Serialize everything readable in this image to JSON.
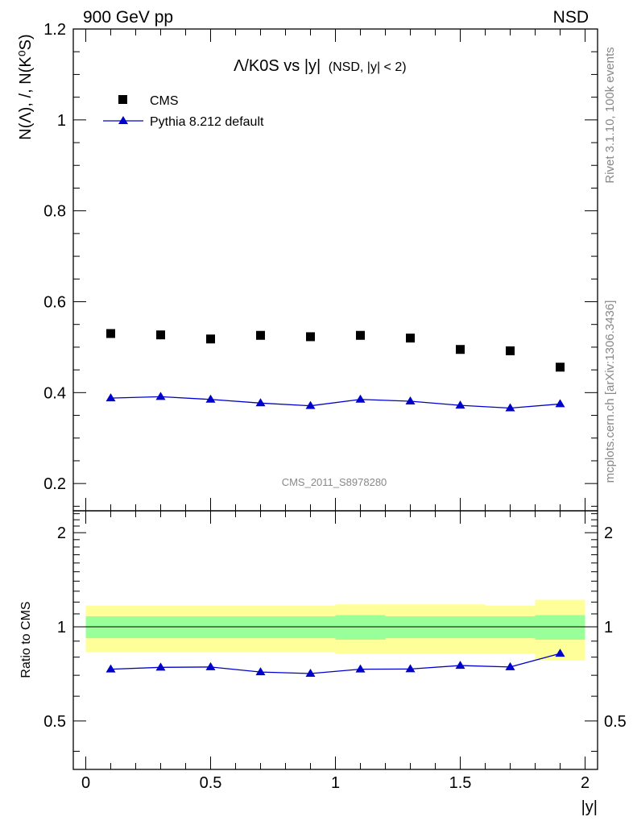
{
  "header": {
    "left": "900 GeV pp",
    "right": "NSD"
  },
  "side_labels": {
    "rivet": "Rivet 3.1.10,  100k events",
    "mcplots": "mcplots.cern.ch [arXiv:1306.3436]"
  },
  "chart_data": [
    {
      "type": "scatter",
      "title": "Λ/K0S vs |y|",
      "title_suffix": "(NSD, |y| < 2)",
      "ylabel": "N(Λ), /, N(K⁰S)",
      "xlabel": "|y|",
      "xlim": [
        -0.05,
        2.05
      ],
      "ylim": [
        0.14,
        1.2
      ],
      "yticks": [
        0.2,
        0.4,
        0.6,
        0.8,
        1.0,
        1.2
      ],
      "ytick_labels": [
        "0.2",
        "0.4",
        "0.6",
        "0.8",
        "1",
        "1.2"
      ],
      "watermark": "CMS_2011_S8978280",
      "legend": [
        {
          "label": "CMS",
          "marker": "square",
          "color": "#000000"
        },
        {
          "label": "Pythia 8.212 default",
          "marker": "triangle-line",
          "color": "#0000cc"
        }
      ],
      "x": [
        0.1,
        0.3,
        0.5,
        0.7,
        0.9,
        1.1,
        1.3,
        1.5,
        1.7,
        1.9
      ],
      "x_edges": [
        0.0,
        0.2,
        0.4,
        0.6,
        0.8,
        1.0,
        1.2,
        1.4,
        1.6,
        1.8,
        2.0
      ],
      "series": [
        {
          "name": "CMS",
          "values": [
            0.53,
            0.527,
            0.518,
            0.526,
            0.523,
            0.526,
            0.52,
            0.495,
            0.492,
            0.456
          ]
        },
        {
          "name": "Pythia 8.212 default",
          "values": [
            0.388,
            0.391,
            0.385,
            0.377,
            0.371,
            0.385,
            0.381,
            0.372,
            0.366,
            0.375
          ],
          "errors": [
            0.006,
            0.006,
            0.006,
            0.006,
            0.006,
            0.006,
            0.006,
            0.006,
            0.006,
            0.006
          ]
        }
      ]
    },
    {
      "type": "area",
      "ylabel": "Ratio to CMS",
      "xlabel": "|y|",
      "xlim": [
        -0.05,
        2.05
      ],
      "ylim": [
        0.35,
        2.35
      ],
      "yticks": [
        0.5,
        1,
        2
      ],
      "ytick_labels": [
        "0.5",
        "1",
        "2"
      ],
      "xticks": [
        0,
        0.5,
        1,
        1.5,
        2
      ],
      "xtick_labels": [
        "0",
        "0.5",
        "1",
        "1.5",
        "2"
      ],
      "x_edges": [
        0.0,
        0.2,
        0.4,
        0.6,
        0.8,
        1.0,
        1.2,
        1.4,
        1.6,
        1.8,
        2.0
      ],
      "band_stat": {
        "lo": [
          0.92,
          0.92,
          0.92,
          0.92,
          0.92,
          0.91,
          0.92,
          0.92,
          0.92,
          0.91
        ],
        "hi": [
          1.08,
          1.08,
          1.08,
          1.08,
          1.08,
          1.09,
          1.08,
          1.08,
          1.08,
          1.09
        ]
      },
      "band_total": {
        "lo": [
          0.83,
          0.83,
          0.83,
          0.83,
          0.83,
          0.82,
          0.82,
          0.82,
          0.82,
          0.78
        ],
        "hi": [
          1.17,
          1.17,
          1.17,
          1.17,
          1.17,
          1.18,
          1.18,
          1.18,
          1.17,
          1.22
        ]
      },
      "x": [
        0.1,
        0.3,
        0.5,
        0.7,
        0.9,
        1.1,
        1.3,
        1.5,
        1.7,
        1.9
      ],
      "series": [
        {
          "name": "Pythia 8.212 default / CMS",
          "values": [
            0.732,
            0.742,
            0.744,
            0.717,
            0.709,
            0.732,
            0.733,
            0.752,
            0.744,
            0.822
          ]
        }
      ]
    }
  ]
}
